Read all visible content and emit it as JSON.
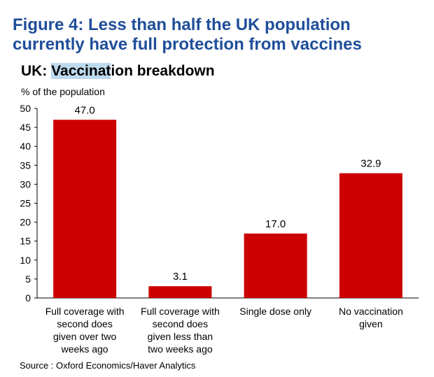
{
  "figure": {
    "title_line1": "Figure 4: Less than half the UK population",
    "title_line2": "currently have full protection from vaccines",
    "title_color": "#1f4e9a"
  },
  "chart_data": {
    "type": "bar",
    "title_prefix": "UK: ",
    "title_highlight": "Vaccinat",
    "title_suffix": "ion breakdown",
    "ylabel": "% of the population",
    "xlabel": "",
    "ylim": [
      0,
      50
    ],
    "yticks": [
      0,
      5,
      10,
      15,
      20,
      25,
      30,
      35,
      40,
      45,
      50
    ],
    "grid": false,
    "legend": "none",
    "bar_color": "#cc0000",
    "categories": [
      [
        "Full coverage with",
        "second does",
        "given over two",
        "weeks ago"
      ],
      [
        "Full coverage with",
        "second does",
        "given less than",
        "two weeks ago"
      ],
      [
        "Single dose only"
      ],
      [
        "No vaccination",
        "given"
      ]
    ],
    "values": [
      47.0,
      3.1,
      17.0,
      32.9
    ],
    "data_labels": [
      "47.0",
      "3.1",
      "17.0",
      "32.9"
    ]
  },
  "source": "Source : Oxford Economics/Haver Analytics"
}
